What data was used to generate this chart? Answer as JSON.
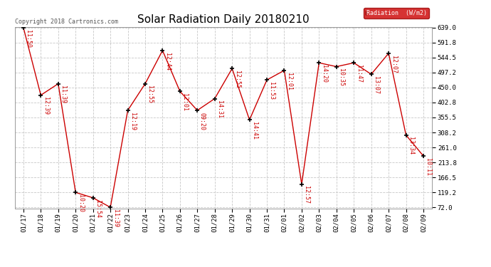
{
  "title": "Solar Radiation Daily 20180210",
  "copyright": "Copyright 2018 Cartronics.com",
  "legend_label": "Radiation  (W/m2)",
  "x_labels": [
    "01/17",
    "01/18",
    "01/19",
    "01/20",
    "01/21",
    "01/22",
    "01/23",
    "01/24",
    "01/25",
    "01/26",
    "01/27",
    "01/28",
    "01/29",
    "01/30",
    "01/31",
    "02/01",
    "02/02",
    "02/03",
    "02/04",
    "02/05",
    "02/06",
    "02/07",
    "02/08",
    "02/09"
  ],
  "y_values": [
    639,
    426,
    462,
    119,
    102,
    72,
    378,
    462,
    567,
    438,
    378,
    415,
    510,
    348,
    474,
    504,
    145,
    528,
    516,
    528,
    492,
    558,
    300,
    234
  ],
  "point_labels": [
    "11:50",
    "12:39",
    "11:39",
    "10:20",
    "15:54",
    "11:39",
    "12:19",
    "12:55",
    "12:44",
    "12:01",
    "09:20",
    "14:31",
    "12:55",
    "14:41",
    "11:53",
    "12:01",
    "12:57",
    "14:20",
    "10:35",
    "11:47",
    "13:07",
    "12:07",
    "13:34",
    "10:11"
  ],
  "ylim_min": 72.0,
  "ylim_max": 639.0,
  "y_ticks": [
    72.0,
    119.2,
    166.5,
    213.8,
    261.0,
    308.2,
    355.5,
    402.8,
    450.0,
    497.2,
    544.5,
    591.8,
    639.0
  ],
  "line_color": "#cc0000",
  "marker_color": "#000000",
  "bg_color": "#ffffff",
  "grid_color": "#c8c8c8",
  "title_fontsize": 11,
  "label_fontsize": 6,
  "tick_fontsize": 6.5,
  "copyright_fontsize": 6
}
